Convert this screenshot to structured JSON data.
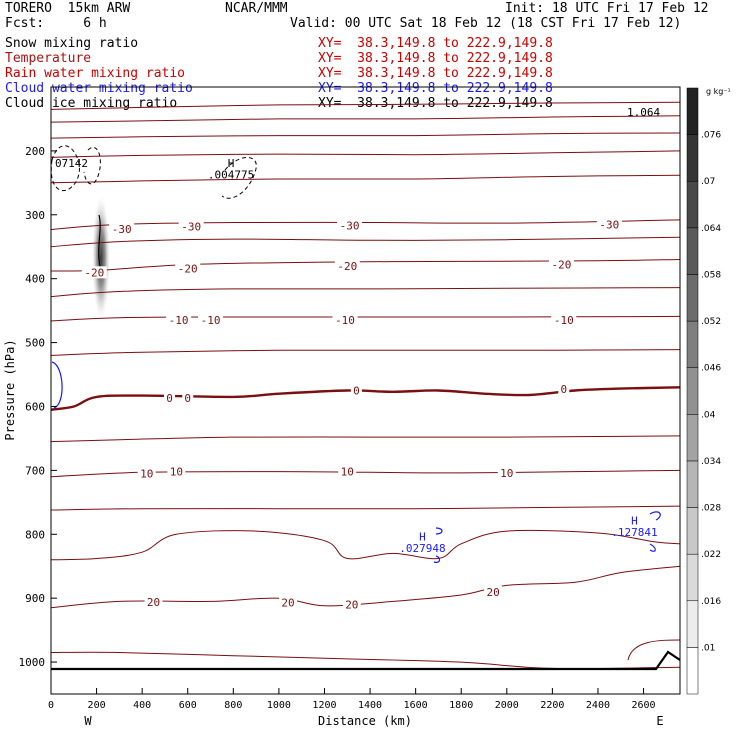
{
  "header": {
    "model": "TORERO  15km ARW",
    "center": "NCAR/MMM",
    "init": "Init: 18 UTC Fri 17 Feb 12",
    "fcst": "Fcst:     6 h",
    "valid": "Valid: 00 UTC Sat 18 Feb 12 (18 CST Fri 17 Feb 12)"
  },
  "fields": [
    {
      "name": "Snow mixing ratio",
      "xy": "XY=  38.3,149.8 to 222.9,149.8",
      "name_color": "#000000",
      "xy_color": "#cc0000"
    },
    {
      "name": "Temperature",
      "xy": "XY=  38.3,149.8 to 222.9,149.8",
      "name_color": "#a31515",
      "xy_color": "#cc0000"
    },
    {
      "name": "Rain water mixing ratio",
      "xy": "XY=  38.3,149.8 to 222.9,149.8",
      "name_color": "#cc0000",
      "xy_color": "#cc0000"
    },
    {
      "name": "Cloud water mixing ratio",
      "xy": "XY=  38.3,149.8 to 222.9,149.8",
      "name_color": "#1a1aff",
      "xy_color": "#1a1aff"
    },
    {
      "name": "Cloud ice mixing ratio",
      "xy": "XY=  38.3,149.8 to 222.9,149.8",
      "name_color": "#000000",
      "xy_color": "#000000"
    }
  ],
  "colorbar": {
    "unit": "g kg⁻¹",
    "labels": [
      ".01",
      ".016",
      ".022",
      ".028",
      ".034",
      ".04",
      ".046",
      ".052",
      ".058",
      ".064",
      ".07",
      ".076"
    ]
  },
  "chart_data": {
    "type": "contour",
    "xlabel": "Distance (km)",
    "ylabel": "Pressure (hPa)",
    "xlim": [
      0,
      2760
    ],
    "ylim": [
      1050,
      100
    ],
    "x_ticks": [
      0,
      200,
      400,
      600,
      800,
      1000,
      1200,
      1400,
      1600,
      1800,
      2000,
      2200,
      2400,
      2600
    ],
    "y_ticks": [
      200,
      300,
      400,
      500,
      600,
      700,
      800,
      900,
      1000
    ],
    "x_end_labels": {
      "left": "W",
      "right": "E"
    },
    "temperature_contours": [
      {
        "level": -70,
        "points": [
          [
            0,
            135
          ],
          [
            400,
            132
          ],
          [
            1000,
            128
          ],
          [
            1600,
            127
          ],
          [
            2200,
            125
          ],
          [
            2760,
            124
          ]
        ]
      },
      {
        "level": -60,
        "points": [
          [
            0,
            155
          ],
          [
            400,
            153
          ],
          [
            1000,
            150
          ],
          [
            1600,
            150
          ],
          [
            2200,
            147
          ],
          [
            2760,
            145
          ]
        ]
      },
      {
        "level": -50,
        "points": [
          [
            0,
            180
          ],
          [
            400,
            178
          ],
          [
            1000,
            176
          ],
          [
            1600,
            176
          ],
          [
            2200,
            173
          ],
          [
            2760,
            172
          ]
        ]
      },
      {
        "level": -40,
        "points": [
          [
            0,
            210
          ],
          [
            400,
            207
          ],
          [
            1000,
            205
          ],
          [
            1600,
            206
          ],
          [
            2200,
            203
          ],
          [
            2760,
            200
          ]
        ]
      },
      {
        "level": -35,
        "points": [
          [
            0,
            250
          ],
          [
            400,
            247
          ],
          [
            1000,
            244
          ],
          [
            1600,
            244
          ],
          [
            2200,
            240
          ],
          [
            2760,
            238
          ]
        ]
      },
      {
        "level": -30,
        "points": [
          [
            0,
            323
          ],
          [
            300,
            315
          ],
          [
            800,
            312
          ],
          [
            1400,
            312
          ],
          [
            2000,
            313
          ],
          [
            2760,
            308
          ]
        ]
      },
      {
        "level": -25,
        "points": [
          [
            0,
            350
          ],
          [
            300,
            342
          ],
          [
            800,
            338
          ],
          [
            1400,
            340
          ],
          [
            2000,
            339
          ],
          [
            2760,
            335
          ]
        ]
      },
      {
        "level": -20,
        "points": [
          [
            0,
            388
          ],
          [
            200,
            387
          ],
          [
            600,
            378
          ],
          [
            1200,
            374
          ],
          [
            1800,
            373
          ],
          [
            2400,
            372
          ],
          [
            2760,
            370
          ]
        ]
      },
      {
        "level": -15,
        "points": [
          [
            0,
            428
          ],
          [
            300,
            420
          ],
          [
            800,
            416
          ],
          [
            1400,
            416
          ],
          [
            2000,
            415
          ],
          [
            2760,
            414
          ]
        ]
      },
      {
        "level": -10,
        "points": [
          [
            0,
            466
          ],
          [
            300,
            461
          ],
          [
            800,
            460
          ],
          [
            1400,
            460
          ],
          [
            2000,
            460
          ],
          [
            2760,
            459
          ]
        ]
      },
      {
        "level": -5,
        "points": [
          [
            0,
            520
          ],
          [
            400,
            515
          ],
          [
            1000,
            512
          ],
          [
            1600,
            512
          ],
          [
            2200,
            512
          ],
          [
            2760,
            511
          ]
        ]
      },
      {
        "level": 0,
        "points": [
          [
            0,
            605
          ],
          [
            100,
            600
          ],
          [
            200,
            585
          ],
          [
            400,
            583
          ],
          [
            800,
            585
          ],
          [
            1000,
            580
          ],
          [
            1300,
            575
          ],
          [
            1500,
            577
          ],
          [
            1700,
            575
          ],
          [
            1900,
            580
          ],
          [
            2100,
            582
          ],
          [
            2300,
            575
          ],
          [
            2500,
            572
          ],
          [
            2760,
            570
          ]
        ]
      },
      {
        "level": 5,
        "points": [
          [
            0,
            655
          ],
          [
            300,
            652
          ],
          [
            800,
            648
          ],
          [
            1400,
            648
          ],
          [
            2000,
            648
          ],
          [
            2760,
            646
          ]
        ]
      },
      {
        "level": 10,
        "points": [
          [
            0,
            710
          ],
          [
            400,
            703
          ],
          [
            1000,
            702
          ],
          [
            1400,
            703
          ],
          [
            1800,
            704
          ],
          [
            2300,
            702
          ],
          [
            2760,
            700
          ]
        ]
      },
      {
        "level": 15,
        "points": [
          [
            0,
            762
          ],
          [
            400,
            760
          ],
          [
            1000,
            760
          ],
          [
            1600,
            760
          ],
          [
            2200,
            758
          ],
          [
            2760,
            756
          ]
        ]
      },
      {
        "level": 20,
        "points": [
          [
            0,
            840
          ],
          [
            200,
            838
          ],
          [
            400,
            828
          ],
          [
            550,
            800
          ],
          [
            900,
            795
          ],
          [
            1200,
            810
          ],
          [
            1300,
            838
          ],
          [
            1500,
            830
          ],
          [
            1700,
            838
          ],
          [
            1800,
            815
          ],
          [
            2000,
            795
          ],
          [
            2400,
            798
          ],
          [
            2650,
            812
          ],
          [
            2760,
            815
          ]
        ]
      },
      {
        "level": 20,
        "points": [
          [
            0,
            915
          ],
          [
            300,
            905
          ],
          [
            700,
            905
          ],
          [
            1000,
            900
          ],
          [
            1200,
            912
          ],
          [
            1500,
            905
          ],
          [
            1800,
            895
          ],
          [
            2000,
            880
          ],
          [
            2300,
            875
          ],
          [
            2500,
            860
          ],
          [
            2760,
            850
          ]
        ]
      },
      {
        "level": 25,
        "points": [
          [
            0,
            985
          ],
          [
            300,
            985
          ],
          [
            800,
            990
          ],
          [
            1300,
            995
          ],
          [
            1800,
            1000
          ],
          [
            2200,
            1010
          ],
          [
            2760,
            1008
          ]
        ]
      }
    ],
    "temperature_contour_labels": [
      {
        "text": "-30",
        "x": 310,
        "y": 322
      },
      {
        "text": "-30",
        "x": 615,
        "y": 318
      },
      {
        "text": "-30",
        "x": 1310,
        "y": 317
      },
      {
        "text": "-30",
        "x": 2450,
        "y": 315
      },
      {
        "text": "-20",
        "x": 190,
        "y": 390
      },
      {
        "text": "-20",
        "x": 600,
        "y": 384
      },
      {
        "text": "-20",
        "x": 1300,
        "y": 380
      },
      {
        "text": "-20",
        "x": 2240,
        "y": 378
      },
      {
        "text": "-10",
        "x": 560,
        "y": 465
      },
      {
        "text": "-10",
        "x": 700,
        "y": 465
      },
      {
        "text": "-10",
        "x": 1290,
        "y": 465
      },
      {
        "text": "-10",
        "x": 2250,
        "y": 465
      },
      {
        "text": "0",
        "x": 520,
        "y": 587
      },
      {
        "text": "0",
        "x": 600,
        "y": 587
      },
      {
        "text": "0",
        "x": 1340,
        "y": 575
      },
      {
        "text": "0",
        "x": 2250,
        "y": 573
      },
      {
        "text": "10",
        "x": 420,
        "y": 705
      },
      {
        "text": "10",
        "x": 550,
        "y": 702
      },
      {
        "text": "10",
        "x": 1300,
        "y": 702
      },
      {
        "text": "10",
        "x": 2000,
        "y": 704
      },
      {
        "text": "20",
        "x": 450,
        "y": 906
      },
      {
        "text": "20",
        "x": 1040,
        "y": 907
      },
      {
        "text": "20",
        "x": 1320,
        "y": 910
      },
      {
        "text": "20",
        "x": 1940,
        "y": 890
      }
    ],
    "annotations": [
      {
        "text": "07142",
        "x": 90,
        "y": 225
      },
      {
        "text": "H",
        "x": 790,
        "y": 225
      },
      {
        "text": ".004775",
        "x": 790,
        "y": 243
      },
      {
        "text": "H",
        "x": 1630,
        "y": 810
      },
      {
        "text": ".027948",
        "x": 1630,
        "y": 828
      },
      {
        "text": "H",
        "x": 2560,
        "y": 785
      },
      {
        "text": ".127841",
        "x": 2560,
        "y": 803
      },
      {
        "text": "1.064",
        "x": 2600,
        "y": 145
      }
    ],
    "cloud_ice_max_g_per_kg": 0.07,
    "ground_pressure_hpa": 1010
  }
}
